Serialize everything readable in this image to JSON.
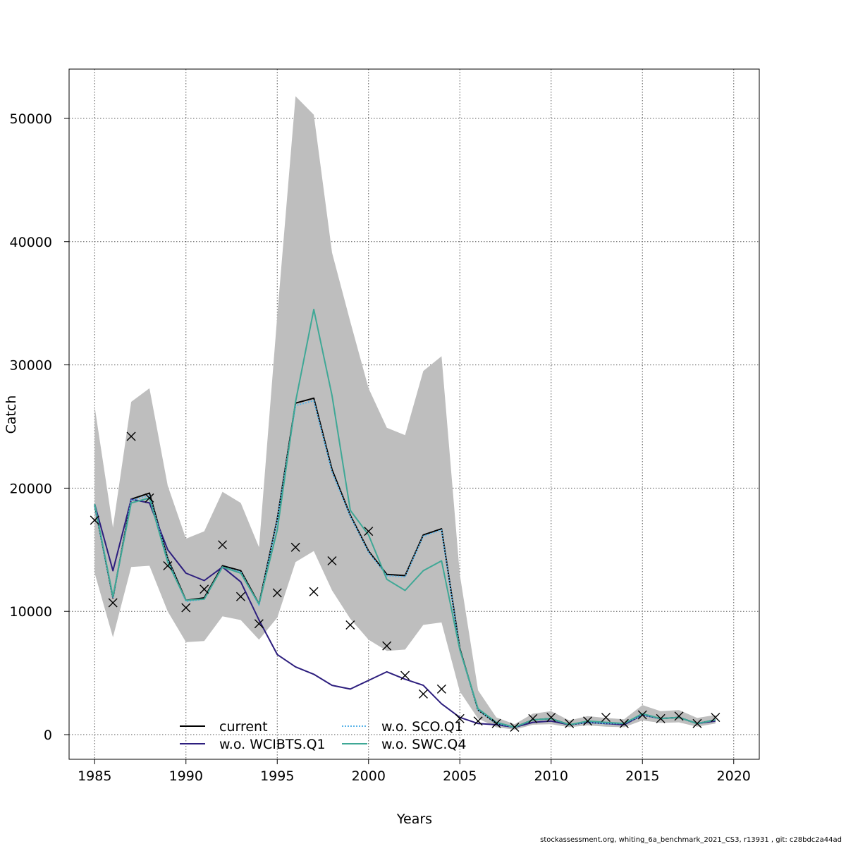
{
  "chart_data": {
    "type": "line",
    "xlabel": "Years",
    "ylabel": "Catch",
    "xlim": [
      1983.6,
      2021.4
    ],
    "ylim": [
      -2000,
      54000
    ],
    "x_ticks": [
      1985,
      1990,
      1995,
      2000,
      2005,
      2010,
      2015,
      2020
    ],
    "y_ticks": [
      0,
      10000,
      20000,
      30000,
      40000,
      50000
    ],
    "grid": true,
    "legend_position": "bottom-center",
    "confidence_band": {
      "color": "#bebebe",
      "x": [
        1985,
        1986,
        1987,
        1988,
        1989,
        1990,
        1991,
        1992,
        1993,
        1994,
        1995,
        1996,
        1997,
        1998,
        1999,
        2000,
        2001,
        2002,
        2003,
        2004,
        2005,
        2006,
        2007,
        2008,
        2009,
        2010,
        2011,
        2012,
        2013,
        2014,
        2015,
        2016,
        2017,
        2018,
        2019
      ],
      "upper": [
        26600,
        16800,
        27000,
        28100,
        20200,
        15900,
        16500,
        19700,
        18800,
        15200,
        34000,
        51800,
        50300,
        39100,
        33500,
        28100,
        24900,
        24300,
        29500,
        30700,
        13000,
        3600,
        1400,
        850,
        1700,
        1900,
        1150,
        1500,
        1350,
        1250,
        2400,
        1900,
        2000,
        1350,
        1600
      ],
      "lower": [
        13100,
        7900,
        13600,
        13700,
        10000,
        7500,
        7600,
        9600,
        9300,
        7700,
        9500,
        14000,
        14900,
        11700,
        9400,
        7700,
        6800,
        6900,
        8900,
        9100,
        3500,
        1300,
        600,
        400,
        800,
        850,
        600,
        750,
        650,
        600,
        1150,
        950,
        1000,
        650,
        900
      ]
    },
    "series": [
      {
        "name": "current",
        "color": "#000000",
        "style": "solid",
        "values": [
          18600,
          11100,
          19100,
          19600,
          14300,
          10900,
          11100,
          13700,
          13300,
          10600,
          17500,
          26900,
          27300,
          21500,
          17800,
          14900,
          13000,
          12900,
          16200,
          16700,
          7000,
          2000,
          900,
          600,
          1200,
          1300,
          800,
          1000,
          900,
          900,
          1600,
          1300,
          1400,
          900,
          1200
        ]
      },
      {
        "name": "w.o. WCIBTS.Q1",
        "color": "#2d1e7e",
        "style": "solid",
        "values": [
          18700,
          13300,
          19100,
          18800,
          15000,
          13100,
          12500,
          13600,
          12400,
          9300,
          6500,
          5500,
          4900,
          4000,
          3700,
          4400,
          5100,
          4500,
          4000,
          2500,
          1400,
          900,
          800,
          600,
          1000,
          1100,
          800,
          1000,
          900,
          800,
          1600,
          1300,
          1400,
          900,
          1100
        ]
      },
      {
        "name": "w.o. SCO.Q1",
        "color": "#5bb4e8",
        "style": "dotted",
        "values": [
          18500,
          11100,
          19000,
          19400,
          14200,
          10800,
          11000,
          13600,
          13200,
          10500,
          17400,
          26700,
          27100,
          21300,
          17700,
          14800,
          12900,
          12800,
          16100,
          16600,
          6900,
          2000,
          900,
          600,
          1200,
          1300,
          800,
          1000,
          900,
          900,
          1600,
          1300,
          1400,
          900,
          1200
        ]
      },
      {
        "name": "w.o. SWC.Q4",
        "color": "#3fa896",
        "style": "solid",
        "values": [
          18700,
          11200,
          18800,
          19200,
          14000,
          10900,
          11000,
          13600,
          13100,
          10600,
          16600,
          27000,
          34500,
          27500,
          18200,
          16200,
          12600,
          11700,
          13300,
          14100,
          6900,
          2100,
          1000,
          600,
          1200,
          1300,
          800,
          1100,
          1000,
          900,
          1700,
          1300,
          1400,
          900,
          1200
        ]
      }
    ],
    "observations": {
      "marker": "x",
      "x": [
        1985,
        1986,
        1987,
        1988,
        1989,
        1990,
        1991,
        1992,
        1993,
        1994,
        1995,
        1996,
        1997,
        1998,
        1999,
        2000,
        2001,
        2002,
        2003,
        2004,
        2005,
        2006,
        2007,
        2008,
        2009,
        2010,
        2011,
        2012,
        2013,
        2014,
        2015,
        2016,
        2017,
        2018,
        2019
      ],
      "values": [
        17400,
        10700,
        24200,
        19200,
        13700,
        10300,
        11800,
        15400,
        11200,
        9000,
        11500,
        15200,
        11600,
        14100,
        8900,
        16500,
        7200,
        4800,
        3300,
        3700,
        1300,
        1100,
        900,
        600,
        1300,
        1400,
        900,
        1100,
        1400,
        900,
        1600,
        1300,
        1500,
        900,
        1400
      ]
    }
  },
  "footer": "stockassessment.org, whiting_6a_benchmark_2021_CS3, r13931 , git: c28bdc2a44ad"
}
